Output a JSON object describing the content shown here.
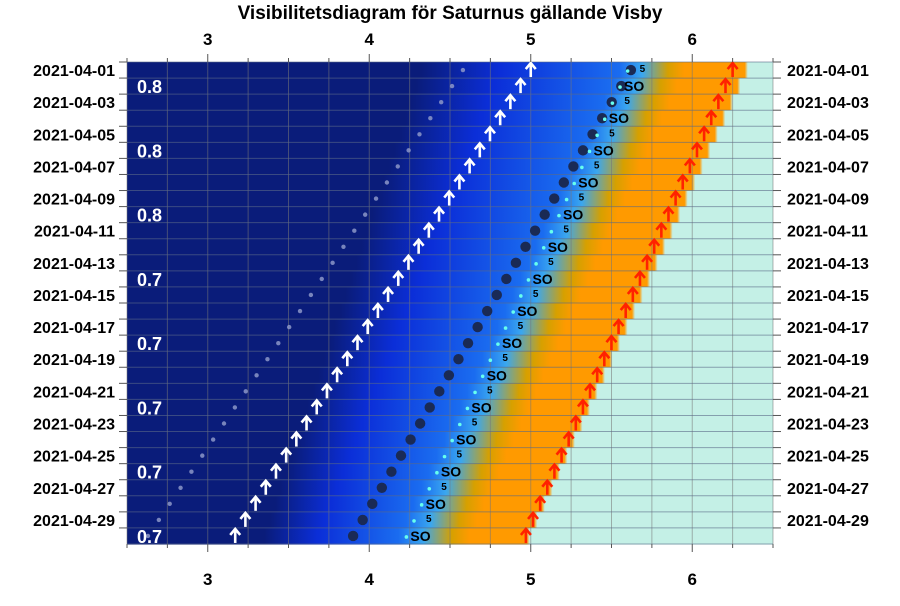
{
  "title": "Visibilitetsdiagram för Saturnus gällande Visby",
  "colors": {
    "night_deep": "#0a1c7a",
    "night": "#0b2ed8",
    "twilight_blue": "#1a6cf0",
    "light_blue": "#3aa7f0",
    "gold": "#d6a000",
    "orange": "#ff9a00",
    "day": "#c4f0e6",
    "grid": "#777777",
    "hline": "#5a6a88",
    "rise_arrow": "#ffffff",
    "set_arrow": "#ff2200",
    "moon_dot": "#1a2a55",
    "planet_dot": "#8c96c8",
    "cyan_dot": "#66ffee"
  },
  "chart_data": {
    "type": "visibility-diagram",
    "title": "Visibilitetsdiagram för Saturnus gällande Visby",
    "x_axis": {
      "unit": "hour (UT)",
      "range": [
        2.5,
        6.5
      ],
      "ticks": [
        3,
        4,
        5,
        6
      ],
      "tick_labels": [
        "3",
        "4",
        "5",
        "6"
      ],
      "minor_grid_step": 0.25
    },
    "dates": [
      "2021-04-01",
      "2021-04-02",
      "2021-04-03",
      "2021-04-04",
      "2021-04-05",
      "2021-04-06",
      "2021-04-07",
      "2021-04-08",
      "2021-04-09",
      "2021-04-10",
      "2021-04-11",
      "2021-04-12",
      "2021-04-13",
      "2021-04-14",
      "2021-04-15",
      "2021-04-16",
      "2021-04-17",
      "2021-04-18",
      "2021-04-19",
      "2021-04-20",
      "2021-04-21",
      "2021-04-22",
      "2021-04-23",
      "2021-04-24",
      "2021-04-25",
      "2021-04-26",
      "2021-04-27",
      "2021-04-28",
      "2021-04-29",
      "2021-04-30"
    ],
    "date_labels": [
      "2021-04-01",
      "2021-04-03",
      "2021-04-05",
      "2021-04-07",
      "2021-04-09",
      "2021-04-11",
      "2021-04-13",
      "2021-04-15",
      "2021-04-17",
      "2021-04-19",
      "2021-04-21",
      "2021-04-23",
      "2021-04-25",
      "2021-04-27",
      "2021-04-29"
    ],
    "saturn_rise": {
      "first": 5.0,
      "last": 3.17
    },
    "sunrise": {
      "first": 6.25,
      "last": 4.97
    },
    "moon_track": {
      "first": 5.62,
      "last": 3.9
    },
    "cyan_track": {
      "first": 5.6,
      "last": 4.23
    },
    "faint_track": {
      "first": 4.58,
      "last": 2.63
    },
    "gradient_left_edge": {
      "first": 4.32,
      "last": 3.35
    },
    "twilight_edge": {
      "first": 5.55,
      "last": 4.18
    },
    "golden_edge": {
      "first": 5.95,
      "last": 4.62
    },
    "day_start": {
      "first": 6.35,
      "last": 5.0
    },
    "magnitude_labels": [
      {
        "row": 1,
        "text": "0.8"
      },
      {
        "row": 5,
        "text": "0.8"
      },
      {
        "row": 9,
        "text": "0.8"
      },
      {
        "row": 13,
        "text": "0.7"
      },
      {
        "row": 17,
        "text": "0.7"
      },
      {
        "row": 21,
        "text": "0.7"
      },
      {
        "row": 25,
        "text": "0.7"
      },
      {
        "row": 29,
        "text": "0.7"
      }
    ],
    "so_marker_label": "SO",
    "five_marker_label": "5"
  }
}
